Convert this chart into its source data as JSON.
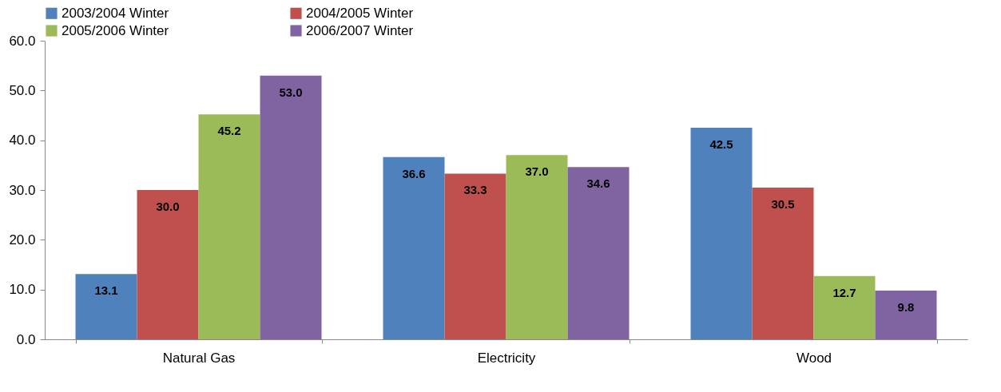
{
  "chart_data": {
    "type": "bar",
    "categories": [
      "Natural Gas",
      "Electricity",
      "Wood"
    ],
    "series": [
      {
        "name": "2003/2004 Winter",
        "color": "#4f81bd",
        "values": [
          13.1,
          36.6,
          42.5
        ],
        "value_labels": [
          "13.1",
          "36.6",
          "42.5"
        ]
      },
      {
        "name": "2004/2005 Winter",
        "color": "#c0504d",
        "values": [
          30.0,
          33.3,
          30.5
        ],
        "value_labels": [
          "30.0",
          "33.3",
          "30.5"
        ]
      },
      {
        "name": "2005/2006 Winter",
        "color": "#9bbb59",
        "values": [
          45.2,
          37.0,
          12.7
        ],
        "value_labels": [
          "45.2",
          "37.0",
          "12.7"
        ]
      },
      {
        "name": "2006/2007 Winter",
        "color": "#8064a2",
        "values": [
          53.0,
          34.6,
          9.8
        ],
        "value_labels": [
          "53.0",
          "34.6",
          "9.8"
        ]
      }
    ],
    "ylim": [
      0,
      60
    ],
    "yticks": [
      {
        "value": 0,
        "label": "0.0"
      },
      {
        "value": 10,
        "label": "10.0"
      },
      {
        "value": 20,
        "label": "20.0"
      },
      {
        "value": 30,
        "label": "30.0"
      },
      {
        "value": 40,
        "label": "40.0"
      },
      {
        "value": 50,
        "label": "50.0"
      },
      {
        "value": 60,
        "label": "60.0"
      }
    ],
    "grid": false,
    "legend": "top"
  }
}
